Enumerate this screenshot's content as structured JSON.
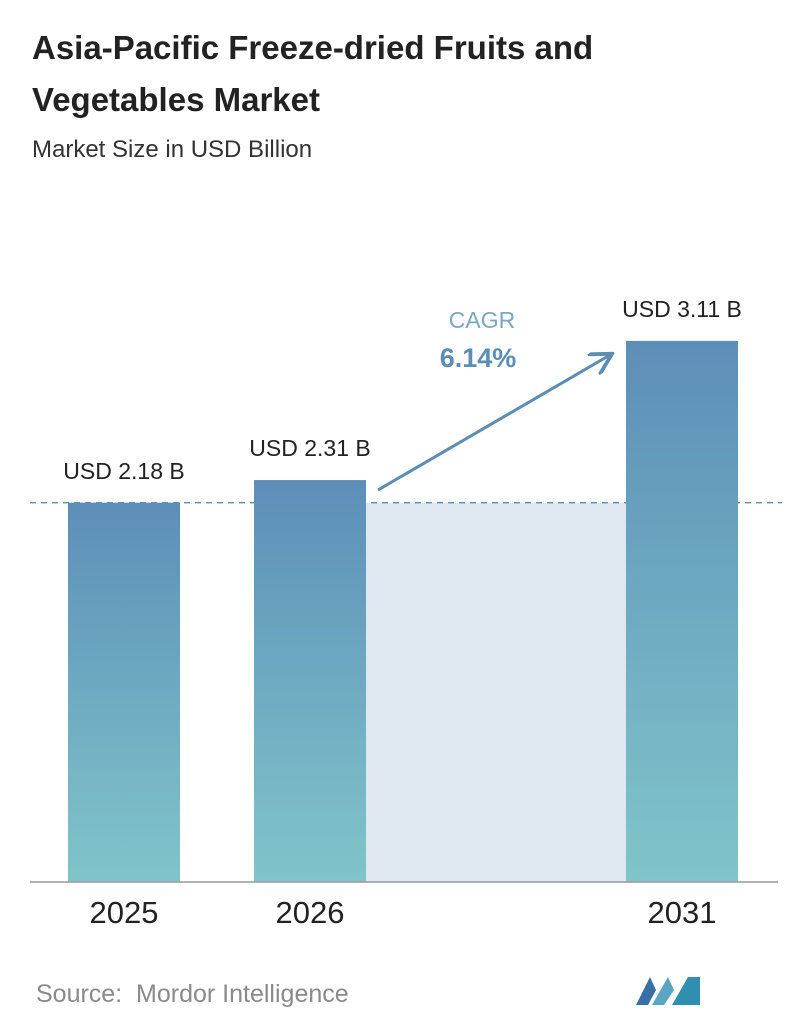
{
  "chart_data": {
    "type": "bar",
    "title": "Asia-Pacific Freeze-dried Fruits and Vegetables Market",
    "subtitle": "Market Size in USD Billion",
    "categories": [
      "2025",
      "2026",
      "2031"
    ],
    "values": [
      2.18,
      2.31,
      3.11
    ],
    "value_labels": [
      "USD 2.18 B",
      "USD 2.31 B",
      "USD 3.11 B"
    ],
    "cagr_label": "CAGR",
    "cagr_value": "6.14%",
    "source": "Source:  Mordor Intelligence"
  }
}
